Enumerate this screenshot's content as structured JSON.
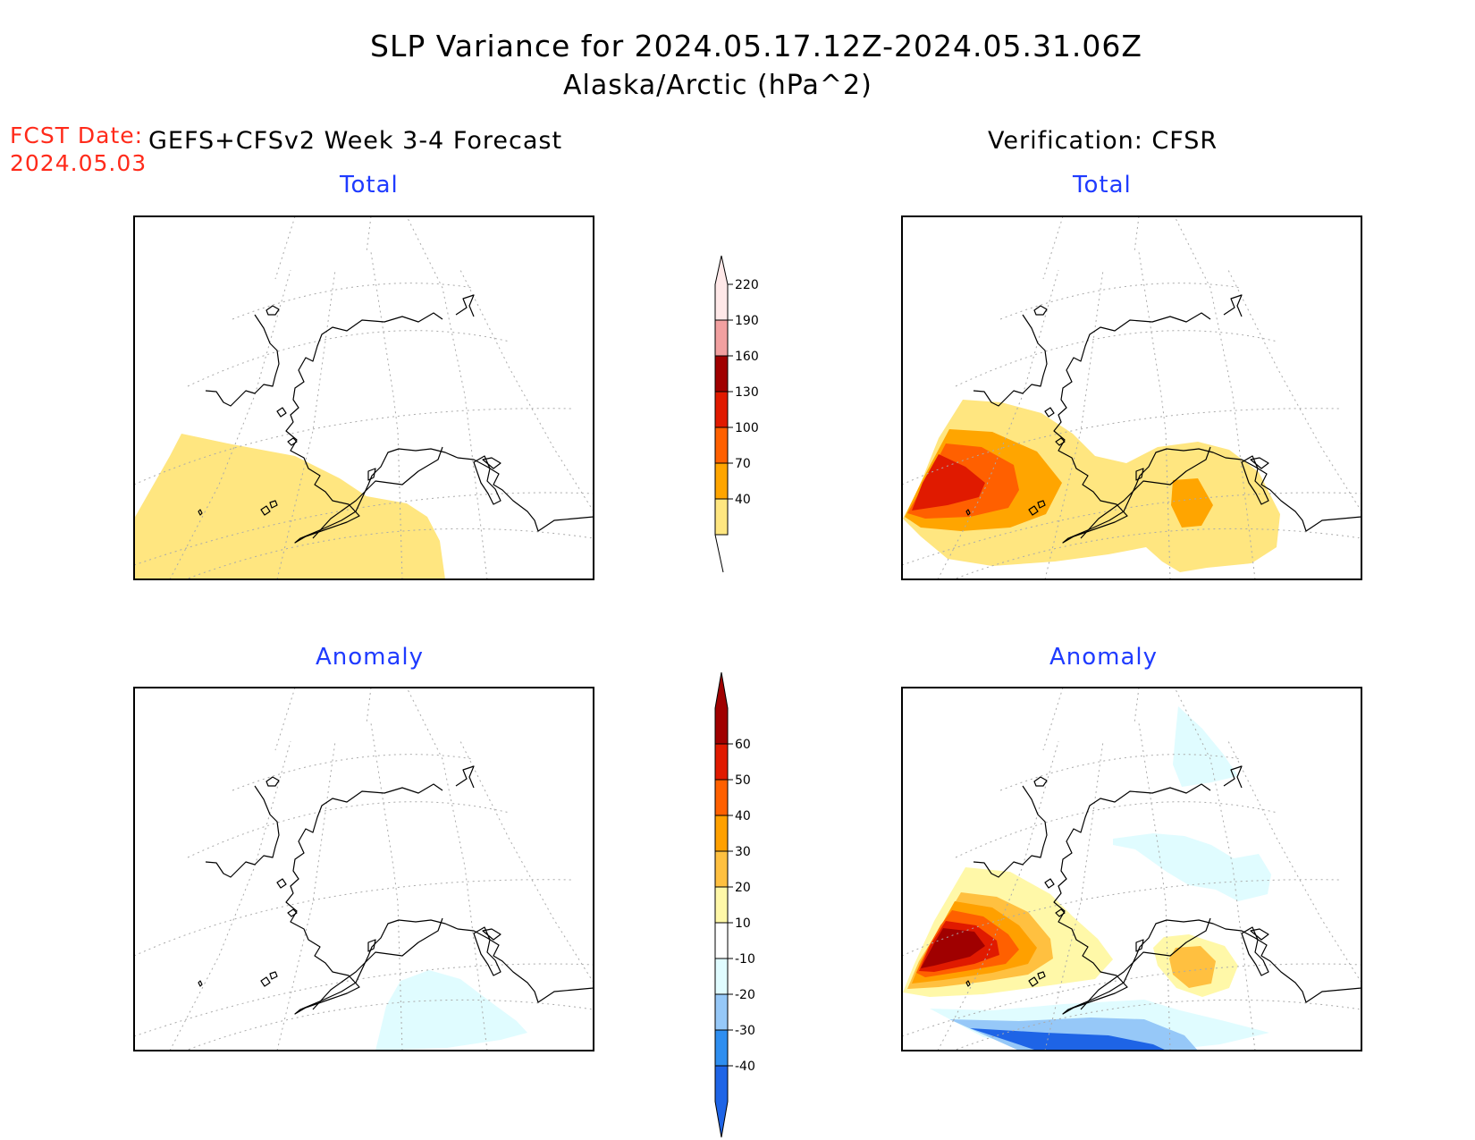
{
  "header": {
    "title": "SLP Variance for 2024.05.17.12Z-2024.05.31.06Z",
    "subtitle": "Alaska/Arctic (hPa^2)",
    "fcst_label": "FCST Date:",
    "fcst_date": "2024.05.03",
    "forecast_label": "GEFS+CFSv2 Week 3-4 Forecast",
    "verification_label": "Verification: CFSR"
  },
  "panels": [
    {
      "id": "forecast-total",
      "title": "Total"
    },
    {
      "id": "verification-total",
      "title": "Total"
    },
    {
      "id": "forecast-anomaly",
      "title": "Anomaly"
    },
    {
      "id": "verification-anomaly",
      "title": "Anomaly"
    }
  ],
  "colorbars": {
    "total": {
      "ticks": [
        "40",
        "70",
        "100",
        "130",
        "160",
        "190",
        "220"
      ],
      "colors": [
        "#ffe680",
        "#ffa500",
        "#ff6000",
        "#e01a00",
        "#a00000",
        "#f2a0a0",
        "#ffe8e8"
      ]
    },
    "anomaly": {
      "ticks": [
        "-40",
        "-30",
        "-20",
        "-10",
        "10",
        "20",
        "30",
        "40",
        "50",
        "60"
      ],
      "colors": [
        "#1e64e6",
        "#2e8ef0",
        "#96c8f8",
        "#e0fcff",
        "#ffffff",
        "#fff8a8",
        "#ffc040",
        "#ffa000",
        "#ff6000",
        "#e01a00",
        "#a00000"
      ]
    }
  },
  "map": {
    "coastline_color": "#000000",
    "grid_color": "#aaaaaa"
  }
}
